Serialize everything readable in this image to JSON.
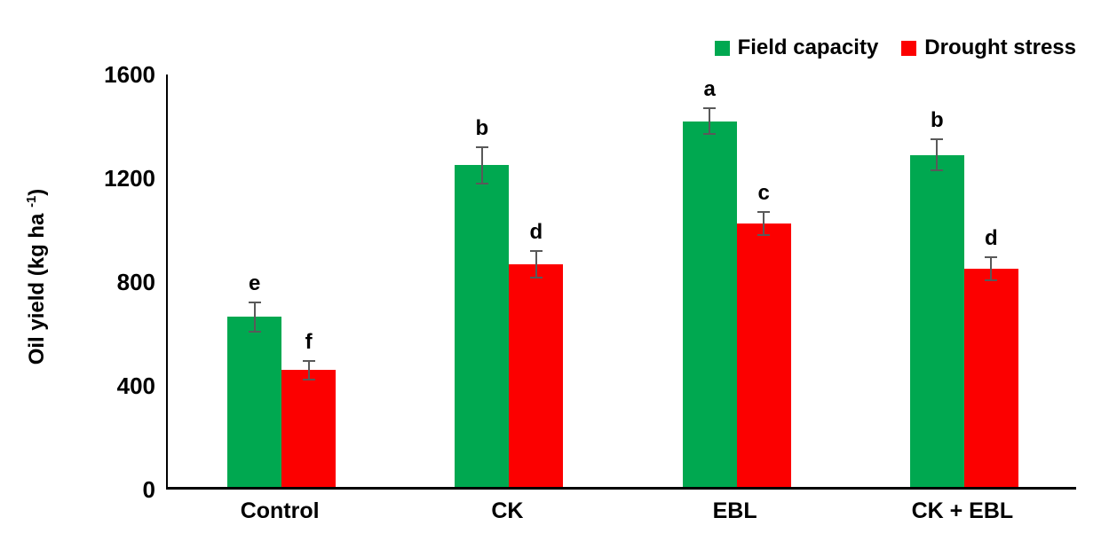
{
  "y_axis": {
    "label_pre": "Oil yield (kg ha ",
    "label_sup": "-1",
    "label_post": ")"
  },
  "chart_data": {
    "type": "bar",
    "title": "",
    "categories": [
      "Control",
      "CK",
      "EBL",
      "CK + EBL"
    ],
    "series": [
      {
        "name": "Field capacity",
        "color": "#00A850",
        "values": [
          655,
          1240,
          1410,
          1280
        ],
        "error_bars": [
          55,
          70,
          50,
          60
        ],
        "significance_letters": [
          "e",
          "b",
          "a",
          "b"
        ]
      },
      {
        "name": "Drought stress",
        "color": "#FC0000",
        "values": [
          450,
          858,
          1015,
          840
        ],
        "error_bars": [
          35,
          50,
          45,
          45
        ],
        "significance_letters": [
          "f",
          "d",
          "c",
          "d"
        ]
      }
    ],
    "xlabel": "",
    "ylabel": "Oil yield (kg ha-1)",
    "yticks": [
      0,
      400,
      800,
      1200,
      1600
    ],
    "ylim": [
      0,
      1600
    ],
    "grid": false,
    "legend_position": "top-right",
    "error_bar_color": "#595959",
    "axis_color": "#000000",
    "background_color": "#FFFFFF"
  }
}
